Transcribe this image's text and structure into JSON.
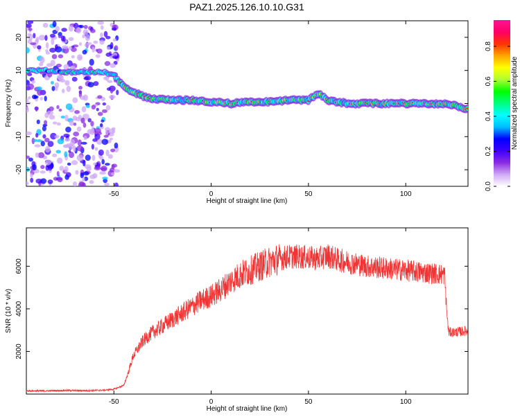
{
  "title": "PAZ1.2025.126.10.10.G31",
  "chart_data": [
    {
      "type": "heatmap",
      "xlabel": "Height of straight line (km)",
      "ylabel": "Frequency (Hz)",
      "xlim": [
        -95,
        132
      ],
      "ylim": [
        -25,
        25
      ],
      "xticks": [
        -50,
        0,
        50,
        100
      ],
      "yticks": [
        -20,
        -10,
        0,
        10,
        20
      ],
      "grid": false,
      "colorbar": {
        "label": "Normalized spectral amplitude",
        "range": [
          0.0,
          0.95
        ],
        "ticks": [
          "0.0",
          "0.2",
          "0.4",
          "0.6",
          "0.8"
        ],
        "colors": [
          "#ffffff",
          "#cfa8f5",
          "#8a2be2",
          "#3d00ff",
          "#0000ff",
          "#00bfff",
          "#00ffff",
          "#00ff7f",
          "#00ff00",
          "#adff2f",
          "#ffff00",
          "#ffa500",
          "#ff3300",
          "#ff0066",
          "#ff1493"
        ]
      },
      "ridge": {
        "x": [
          -95,
          -85,
          -75,
          -65,
          -55,
          -50,
          -46,
          -42,
          -38,
          -34,
          -30,
          -20,
          -10,
          0,
          10,
          20,
          30,
          40,
          50,
          55,
          60,
          65,
          70,
          80,
          90,
          100,
          110,
          120,
          125,
          130
        ],
        "y": [
          10,
          10,
          9.5,
          9.5,
          9.5,
          8.5,
          6,
          4,
          3,
          2,
          1.5,
          1,
          1,
          0.5,
          0,
          0.5,
          0.5,
          1,
          1,
          3,
          1,
          0.5,
          0,
          0,
          0,
          0,
          0,
          0,
          -0.5,
          -1.5
        ]
      }
    },
    {
      "type": "line",
      "xlabel": "Height of straight line (km)",
      "ylabel": "SNR (10 * v/v)",
      "xlim": [
        -95,
        132
      ],
      "ylim": [
        0,
        7800
      ],
      "xticks": [
        -50,
        0,
        50,
        100
      ],
      "yticks": [
        2000,
        4000,
        6000
      ],
      "grid": false,
      "color": "#f03333",
      "series": [
        {
          "x": [
            -95,
            -85,
            -75,
            -65,
            -55,
            -50,
            -45,
            -43,
            -40,
            -35,
            -30,
            -25,
            -20,
            -15,
            -10,
            -5,
            0,
            5,
            10,
            15,
            20,
            25,
            30,
            35,
            40,
            45,
            50,
            55,
            60,
            65,
            70,
            75,
            80,
            85,
            90,
            95,
            100,
            105,
            110,
            115,
            120,
            121,
            122,
            125,
            130
          ],
          "y": [
            150,
            150,
            170,
            160,
            180,
            230,
            400,
            900,
            1800,
            2500,
            2900,
            3200,
            3500,
            3800,
            4100,
            4400,
            4600,
            4900,
            5300,
            5600,
            5800,
            6000,
            6200,
            6350,
            6450,
            6450,
            6400,
            6350,
            6500,
            6300,
            6200,
            6100,
            6000,
            5950,
            5900,
            5850,
            5800,
            5750,
            5700,
            5650,
            5600,
            4000,
            2900,
            2900,
            2950
          ]
        }
      ]
    }
  ]
}
